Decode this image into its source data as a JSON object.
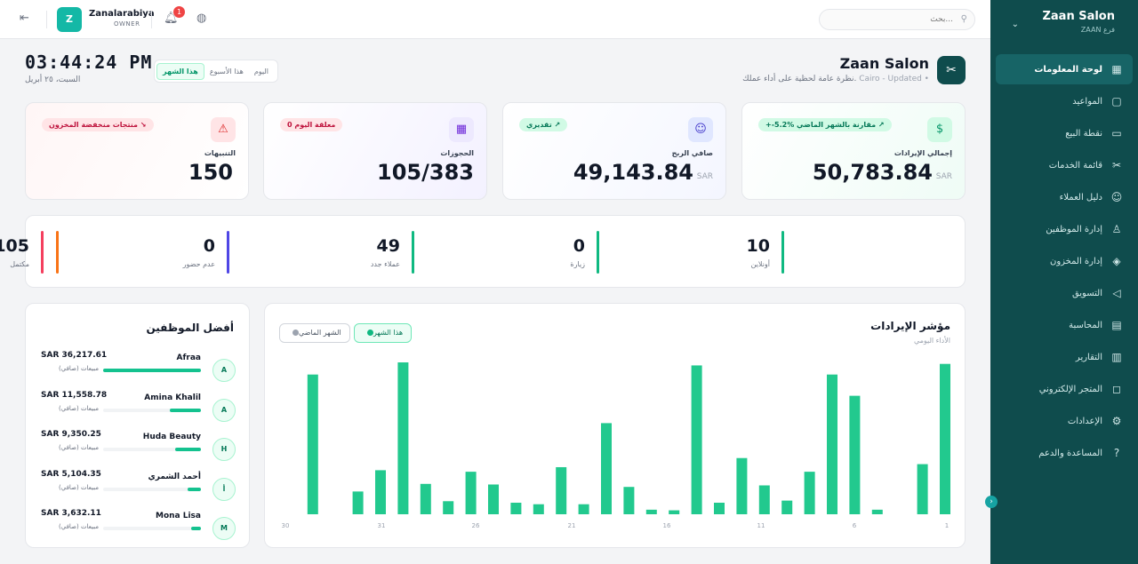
{
  "topbar": {
    "user_initial": "Z",
    "user_name": "Zanalarabiya",
    "user_role": "OWNER",
    "notification_count": "1",
    "search_placeholder": "بحث..."
  },
  "sidebar": {
    "brand": "Zaan Salon",
    "branch": "ZAAN فرع",
    "items": [
      {
        "label": "لوحة المعلومات",
        "icon": "dashboard-icon",
        "glyph": "▦",
        "active": true
      },
      {
        "label": "المواعيد",
        "icon": "calendar-icon",
        "glyph": "▢"
      },
      {
        "label": "نقطة البيع",
        "icon": "monitor-icon",
        "glyph": "▭"
      },
      {
        "label": "قائمة الخدمات",
        "icon": "scissors-icon",
        "glyph": "✂"
      },
      {
        "label": "دليل العملاء",
        "icon": "users-icon",
        "glyph": "☺"
      },
      {
        "label": "إدارة الموظفين",
        "icon": "user-cog-icon",
        "glyph": "♙"
      },
      {
        "label": "إدارة المخزون",
        "icon": "package-icon",
        "glyph": "◈"
      },
      {
        "label": "التسويق",
        "icon": "megaphone-icon",
        "glyph": "◁"
      },
      {
        "label": "المحاسبة",
        "icon": "calculator-icon",
        "glyph": "▤"
      },
      {
        "label": "التقارير",
        "icon": "bar-chart-icon",
        "glyph": "▥"
      },
      {
        "label": "المتجر الإلكتروني",
        "icon": "shopping-bag-icon",
        "glyph": "◻"
      },
      {
        "label": "الإعدادات",
        "icon": "gear-icon",
        "glyph": "⚙"
      },
      {
        "label": "المساعدة والدعم",
        "icon": "help-icon",
        "glyph": "?"
      }
    ]
  },
  "header": {
    "clock": "03:44:24 PM",
    "date": "السبت، ٢٥ أبريل",
    "periods": [
      "اليوم",
      "هذا الأسبوع",
      "هذا الشهر"
    ],
    "selected_period": "هذا الشهر",
    "title": "Zaan Salon",
    "subtitle": "نظرة عامة لحظية على أداء عملك.",
    "location": "Cairo - Updated •"
  },
  "cards": {
    "revenue": {
      "label": "إجمالي الإيرادات",
      "value": "50,783.84",
      "currency": "SAR",
      "badge": "+-5.2% مقارنة بالشهر الماضي ↗"
    },
    "profit": {
      "label": "صافي الربح",
      "value": "49,143.84",
      "currency": "SAR",
      "badge": "تقديري ↗"
    },
    "bookings": {
      "label": "الحجوزات",
      "value": "105/383",
      "badge": "0 معلقة اليوم"
    },
    "alerts": {
      "label": "التنبيهات",
      "value": "150",
      "badge": "منتجات منخفضة المخزون ↘"
    }
  },
  "stats": [
    {
      "value": "10",
      "label": "أونلاين",
      "color": "#10b981"
    },
    {
      "value": "0",
      "label": "زيارة",
      "color": "#10b981"
    },
    {
      "value": "49",
      "label": "عملاء جدد",
      "color": "#10b981"
    },
    {
      "value": "0",
      "label": "عدم حضور",
      "color": "#4f46e5"
    },
    {
      "value": "105",
      "label": "مكتمل",
      "color": "#f43f5e"
    },
    {
      "value": "",
      "label": "",
      "color": "#f97316"
    }
  ],
  "employees": {
    "title": "أفضل الموظفين",
    "sales_label": "مبيعات (صافي)",
    "list": [
      {
        "initial": "A",
        "name": "Afraa",
        "amount": "SAR 36,217.61",
        "share": 1.0
      },
      {
        "initial": "A",
        "name": "Amina Khalil",
        "amount": "SAR 11,558.78",
        "share": 0.32
      },
      {
        "initial": "H",
        "name": "Huda Beauty",
        "amount": "SAR 9,350.25",
        "share": 0.26
      },
      {
        "initial": "أ",
        "name": "أحمد الشمري",
        "amount": "SAR 5,104.35",
        "share": 0.14
      },
      {
        "initial": "M",
        "name": "Mona Lisa",
        "amount": "SAR 3,632.11",
        "share": 0.1
      }
    ]
  },
  "chart_data": {
    "type": "bar",
    "title": "مؤشر الإيرادات",
    "subtitle": "الأداء اليومي",
    "legend": [
      "هذا الشهر",
      "الشهر الماضي"
    ],
    "x": [
      1,
      2,
      3,
      4,
      5,
      6,
      7,
      8,
      9,
      10,
      11,
      12,
      13,
      14,
      15,
      16,
      17,
      18,
      19,
      20,
      21,
      22,
      23,
      24,
      25,
      26,
      27,
      28,
      29,
      30
    ],
    "x_tick_labels": [
      "1",
      "6",
      "11",
      "16",
      "21",
      "26",
      "31",
      "30"
    ],
    "values": [
      4950,
      1650,
      0,
      150,
      3900,
      4600,
      1400,
      450,
      950,
      1850,
      380,
      4900,
      130,
      150,
      900,
      3000,
      330,
      1550,
      330,
      380,
      980,
      1400,
      430,
      1000,
      5000,
      1450,
      750,
      0,
      4600,
      0
    ],
    "ylim": [
      0,
      5000
    ],
    "color": "#22c98e"
  }
}
